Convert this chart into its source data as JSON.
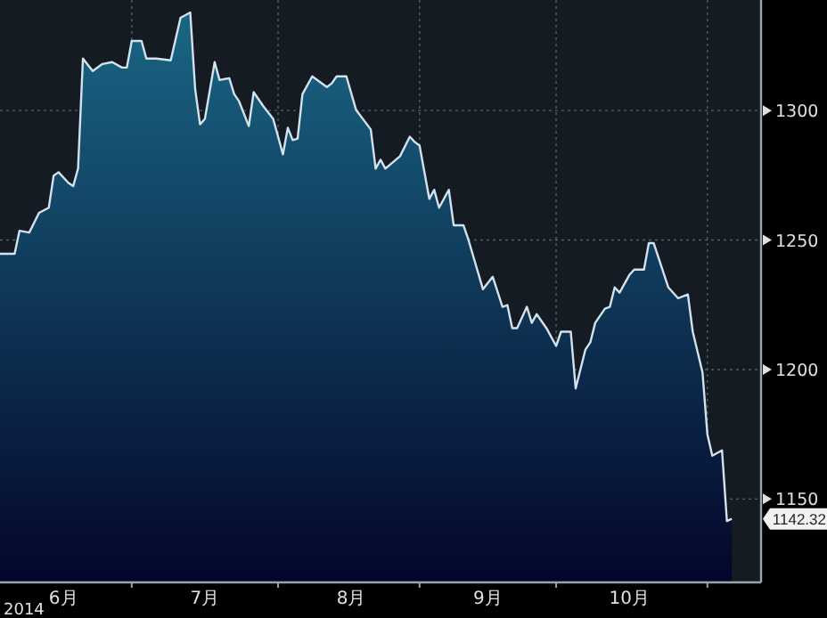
{
  "chart_data": {
    "type": "area",
    "x": [
      "2014-06-03",
      "2014-06-06",
      "2014-06-07",
      "2014-06-09",
      "2014-06-11",
      "2014-06-13",
      "2014-06-14",
      "2014-06-15",
      "2014-06-17",
      "2014-06-18",
      "2014-06-19",
      "2014-06-20",
      "2014-06-22",
      "2014-06-24",
      "2014-06-26",
      "2014-06-28",
      "2014-06-29",
      "2014-06-30",
      "2014-07-02",
      "2014-07-03",
      "2014-07-05",
      "2014-07-08",
      "2014-07-10",
      "2014-07-12",
      "2014-07-13",
      "2014-07-14",
      "2014-07-15",
      "2014-07-17",
      "2014-07-18",
      "2014-07-20",
      "2014-07-21",
      "2014-07-22",
      "2014-07-24",
      "2014-07-25",
      "2014-07-27",
      "2014-07-29",
      "2014-07-31",
      "2014-08-01",
      "2014-08-02",
      "2014-08-03",
      "2014-08-04",
      "2014-08-06",
      "2014-08-09",
      "2014-08-10",
      "2014-08-11",
      "2014-08-13",
      "2014-08-15",
      "2014-08-18",
      "2014-08-19",
      "2014-08-20",
      "2014-08-21",
      "2014-08-24",
      "2014-08-26",
      "2014-08-27",
      "2014-08-28",
      "2014-08-30",
      "2014-08-31",
      "2014-09-01",
      "2014-09-03",
      "2014-09-04",
      "2014-09-06",
      "2014-09-07",
      "2014-09-10",
      "2014-09-12",
      "2014-09-14",
      "2014-09-15",
      "2014-09-16",
      "2014-09-17",
      "2014-09-19",
      "2014-09-20",
      "2014-09-21",
      "2014-09-23",
      "2014-09-25",
      "2014-09-26",
      "2014-09-28",
      "2014-09-29",
      "2014-10-01",
      "2014-10-02",
      "2014-10-03",
      "2014-10-05",
      "2014-10-06",
      "2014-10-07",
      "2014-10-08",
      "2014-10-10",
      "2014-10-11",
      "2014-10-13",
      "2014-10-14",
      "2014-10-15",
      "2014-10-18",
      "2014-10-20",
      "2014-10-22",
      "2014-10-23",
      "2014-10-25",
      "2014-10-26",
      "2014-10-27",
      "2014-10-29",
      "2014-10-30",
      "2014-10-31"
    ],
    "series": [
      {
        "color": "#1a6684",
        "values": [
          1244.7,
          1244.7,
          1253.6,
          1252.9,
          1260.5,
          1262.5,
          1274.9,
          1276.2,
          1272.1,
          1270.8,
          1277.6,
          1320.1,
          1315.3,
          1318.0,
          1318.7,
          1316.6,
          1316.6,
          1326.9,
          1326.9,
          1320.1,
          1320.1,
          1319.4,
          1335.8,
          1337.9,
          1308.4,
          1294.7,
          1296.8,
          1318.7,
          1311.8,
          1312.5,
          1306.4,
          1303.6,
          1294.0,
          1307.1,
          1301.6,
          1296.8,
          1283.1,
          1293.4,
          1288.6,
          1289.2,
          1306.4,
          1313.2,
          1309.1,
          1310.5,
          1313.2,
          1313.2,
          1300.2,
          1292.7,
          1277.6,
          1281.0,
          1277.6,
          1282.4,
          1289.9,
          1287.9,
          1286.5,
          1265.9,
          1269.4,
          1262.5,
          1269.4,
          1255.7,
          1255.7,
          1250.2,
          1231.0,
          1235.8,
          1224.2,
          1224.9,
          1216.0,
          1216.0,
          1224.2,
          1218.0,
          1221.4,
          1216.0,
          1209.1,
          1214.6,
          1214.6,
          1192.7,
          1207.7,
          1210.5,
          1218.0,
          1223.5,
          1224.2,
          1231.7,
          1229.7,
          1236.5,
          1238.6,
          1238.6,
          1248.8,
          1248.8,
          1231.7,
          1227.5,
          1229.0,
          1214.6,
          1198.9,
          1175.0,
          1166.7,
          1168.8,
          1141.5,
          1142.32
        ]
      }
    ],
    "xlim": [
      "2014-06-03",
      "2014-11-06"
    ],
    "xticks": [
      {
        "value": "2014-06-16",
        "label": "6月"
      },
      {
        "value": "2014-07-15",
        "label": "7月"
      },
      {
        "value": "2014-08-14",
        "label": "8月"
      },
      {
        "value": "2014-09-11",
        "label": "9月"
      },
      {
        "value": "2014-10-10",
        "label": "10月"
      },
      {
        "value": "2014-06-30",
        "label": null
      },
      {
        "value": "2014-07-30",
        "label": null
      },
      {
        "value": "2014-08-28",
        "label": null
      },
      {
        "value": "2014-09-25",
        "label": null
      },
      {
        "value": "2014-10-26",
        "label": null
      }
    ],
    "ylim": [
      1117.8,
      1342.7
    ],
    "yticks": [
      1150,
      1200,
      1250,
      1300
    ],
    "grid": true,
    "annotations": [
      {
        "text": "1142.32",
        "x": "2014-10-31",
        "y": 1142.32
      },
      "2014"
    ]
  }
}
